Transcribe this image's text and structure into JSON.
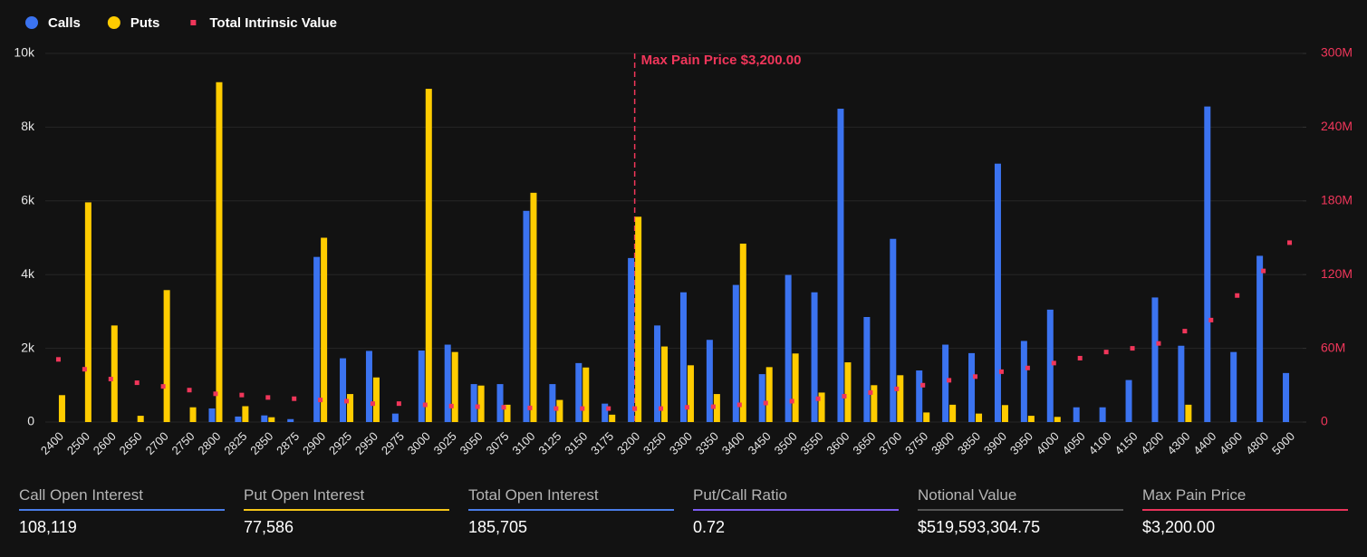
{
  "chart_data": {
    "type": "bar",
    "legend": [
      {
        "name": "Calls",
        "color": "#3b73f0",
        "shape": "circle"
      },
      {
        "name": "Puts",
        "color": "#ffcc00",
        "shape": "circle"
      },
      {
        "name": "Total Intrinsic Value",
        "color": "#f0365a",
        "shape": "square"
      }
    ],
    "categories": [
      "2400",
      "2500",
      "2600",
      "2650",
      "2700",
      "2750",
      "2800",
      "2825",
      "2850",
      "2875",
      "2900",
      "2925",
      "2950",
      "2975",
      "3000",
      "3025",
      "3050",
      "3075",
      "3100",
      "3125",
      "3150",
      "3175",
      "3200",
      "3250",
      "3300",
      "3350",
      "3400",
      "3450",
      "3500",
      "3550",
      "3600",
      "3650",
      "3700",
      "3750",
      "3800",
      "3850",
      "3900",
      "3950",
      "4000",
      "4050",
      "4100",
      "4150",
      "4200",
      "4300",
      "4400",
      "4600",
      "4800",
      "5000"
    ],
    "series": [
      {
        "name": "Calls",
        "color": "#3b73f0",
        "kind": "bar",
        "values": [
          0,
          0,
          0,
          0,
          0,
          0,
          370,
          150,
          180,
          80,
          4480,
          1730,
          1930,
          230,
          1940,
          2100,
          1030,
          1030,
          5730,
          1030,
          1600,
          500,
          4450,
          2620,
          3520,
          2230,
          3720,
          1300,
          3990,
          3520,
          8500,
          2850,
          4970,
          1400,
          2100,
          1870,
          7010,
          2200,
          3050,
          400,
          400,
          1140,
          3380,
          2070,
          8560,
          1900,
          4510,
          1330
        ]
      },
      {
        "name": "Puts",
        "color": "#ffcc00",
        "kind": "bar",
        "values": [
          730,
          5960,
          2620,
          170,
          3580,
          400,
          9220,
          430,
          130,
          0,
          5000,
          760,
          1210,
          0,
          9040,
          1900,
          990,
          470,
          6220,
          600,
          1480,
          200,
          5570,
          2050,
          1540,
          760,
          4840,
          1490,
          1860,
          800,
          1620,
          1000,
          1270,
          260,
          470,
          230,
          460,
          170,
          140,
          0,
          0,
          0,
          0,
          470,
          0,
          0,
          0,
          0
        ]
      },
      {
        "name": "Total Intrinsic Value",
        "color": "#f0365a",
        "kind": "dot",
        "axis": "y2",
        "values": [
          51,
          43,
          35,
          32,
          29,
          26,
          23,
          22,
          20,
          19,
          18,
          17,
          15,
          15,
          14,
          13,
          12.5,
          12,
          11.5,
          11,
          11,
          11,
          11,
          11,
          12,
          12.5,
          14,
          15.5,
          17,
          19,
          21,
          24,
          27,
          30,
          34,
          37,
          41,
          44,
          48,
          52,
          57,
          60,
          64,
          74,
          83,
          103,
          123,
          146
        ]
      }
    ],
    "ylim": [
      0,
      10000
    ],
    "yticks": [
      0,
      {
        "value": 2000,
        "label": "2k"
      },
      {
        "value": 4000,
        "label": "4k"
      },
      {
        "value": 6000,
        "label": "6k"
      },
      {
        "value": 8000,
        "label": "8k"
      },
      {
        "value": 10000,
        "label": "10k"
      }
    ],
    "y2lim": [
      0,
      300
    ],
    "y2ticks": [
      0,
      {
        "value": 60,
        "label": "60M"
      },
      {
        "value": 120,
        "label": "120M"
      },
      {
        "value": 180,
        "label": "180M"
      },
      {
        "value": 240,
        "label": "240M"
      },
      {
        "value": 300,
        "label": "300M"
      }
    ],
    "grid": true,
    "annotation": {
      "text": "Max Pain Price $3,200.00",
      "category": "3200",
      "color": "#f0365a"
    }
  },
  "stats": [
    {
      "label": "Call Open Interest",
      "value": "108,119",
      "color": "#4a7de8"
    },
    {
      "label": "Put Open Interest",
      "value": "77,586",
      "color": "#f5c518"
    },
    {
      "label": "Total Open Interest",
      "value": "185,705",
      "color": "#4a7de8"
    },
    {
      "label": "Put/Call Ratio",
      "value": "0.72",
      "color": "#7b5cf0"
    },
    {
      "label": "Notional Value",
      "value": "$519,593,304.75",
      "color": "#555555"
    },
    {
      "label": "Max Pain Price",
      "value": "$3,200.00",
      "color": "#e8335a"
    }
  ]
}
